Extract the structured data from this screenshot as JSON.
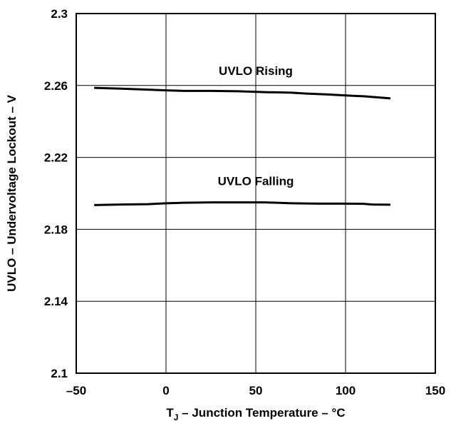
{
  "chart_data": {
    "type": "line",
    "title": "",
    "xlabel_main": "T",
    "xlabel_sub": "J",
    "xlabel_rest": " – Junction Temperature – °C",
    "ylabel": "UVLO – Undervoltage Lockout – V",
    "xlim": [
      -50,
      150
    ],
    "ylim": [
      2.1,
      2.3
    ],
    "grid": true,
    "x_ticks": [
      "–50",
      "0",
      "50",
      "100",
      "150"
    ],
    "y_ticks": [
      "2.1",
      "2.14",
      "2.18",
      "2.22",
      "2.26",
      "2.3"
    ],
    "x_tick_values": [
      -50,
      0,
      50,
      100,
      150
    ],
    "y_tick_values": [
      2.1,
      2.14,
      2.18,
      2.22,
      2.26,
      2.3
    ],
    "series": [
      {
        "name": "UVLO Rising",
        "x": [
          -40,
          -25,
          -10,
          0,
          10,
          25,
          40,
          55,
          70,
          78,
          90,
          100,
          110,
          125
        ],
        "y": [
          2.2587,
          2.2582,
          2.2577,
          2.2573,
          2.257,
          2.257,
          2.2568,
          2.2563,
          2.256,
          2.2555,
          2.255,
          2.2545,
          2.254,
          2.2528
        ]
      },
      {
        "name": "UVLO Falling",
        "x": [
          -40,
          -25,
          -10,
          0,
          10,
          25,
          40,
          55,
          70,
          85,
          100,
          110,
          115,
          125
        ],
        "y": [
          2.1935,
          2.1938,
          2.194,
          2.1945,
          2.1948,
          2.195,
          2.195,
          2.195,
          2.1945,
          2.1943,
          2.1943,
          2.1942,
          2.1938,
          2.1937
        ]
      }
    ],
    "colors": {
      "line": "#000000",
      "grid": "#000000",
      "background": "#ffffff"
    }
  }
}
